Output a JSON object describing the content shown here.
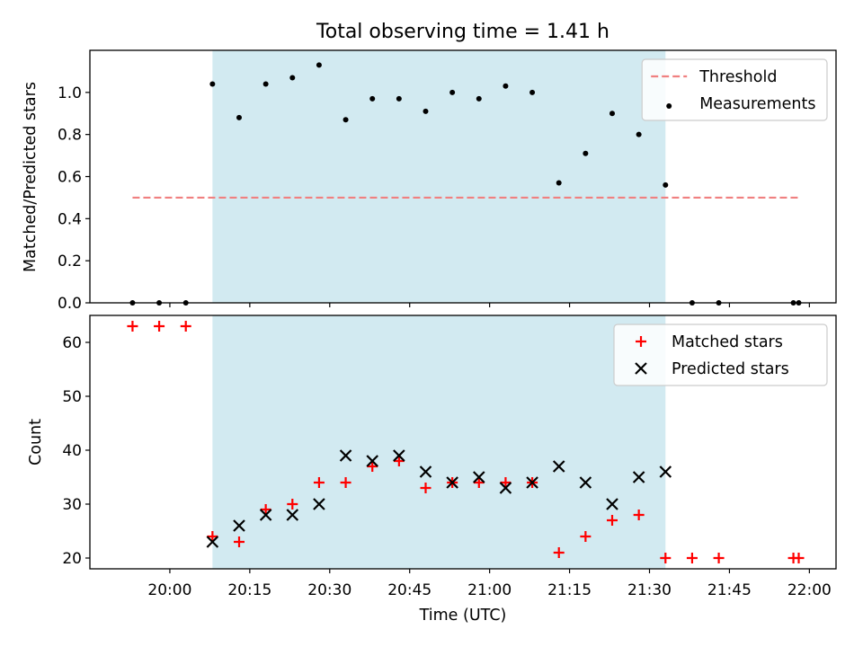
{
  "chart_data": [
    {
      "type": "scatter",
      "title": "Total observing time = 1.41 h",
      "xlabel": "",
      "ylabel": "Matched/Predicted stars",
      "ylim": [
        0,
        1.2
      ],
      "yticks": [
        0.0,
        0.2,
        0.4,
        0.6,
        0.8,
        1.0
      ],
      "ytick_labels": [
        "0.0",
        "0.2",
        "0.4",
        "0.6",
        "0.8",
        "1.0"
      ],
      "xlim_minutes": [
        1185,
        1325
      ],
      "xticks_minutes": [
        1200,
        1215,
        1230,
        1245,
        1260,
        1275,
        1290,
        1305,
        1320
      ],
      "legend_position": "upper right",
      "grid": false,
      "shaded_interval": {
        "start": "20:08",
        "end": "21:33",
        "color": "#add8e6"
      },
      "series": [
        {
          "name": "Threshold",
          "style": "dashed-line",
          "color": "#f08080",
          "x": [
            "19:53",
            "21:58"
          ],
          "values": [
            0.5,
            0.5
          ]
        },
        {
          "name": "Measurements",
          "style": "dot",
          "color": "#000000",
          "x": [
            "19:53",
            "19:58",
            "20:03",
            "20:08",
            "20:13",
            "20:18",
            "20:23",
            "20:28",
            "20:33",
            "20:38",
            "20:43",
            "20:48",
            "20:53",
            "20:58",
            "21:03",
            "21:08",
            "21:13",
            "21:18",
            "21:23",
            "21:28",
            "21:33",
            "21:38",
            "21:43",
            "21:57",
            "21:58"
          ],
          "values": [
            0.0,
            0.0,
            0.0,
            1.04,
            0.88,
            1.04,
            1.07,
            1.13,
            0.87,
            0.97,
            0.97,
            0.91,
            1.0,
            0.97,
            1.03,
            1.0,
            0.57,
            0.71,
            0.9,
            0.8,
            0.56,
            0.0,
            0.0,
            0.0,
            0.0
          ]
        }
      ]
    },
    {
      "type": "scatter",
      "title": "",
      "xlabel": "Time (UTC)",
      "ylabel": "Count",
      "ylim": [
        18,
        65
      ],
      "yticks": [
        20,
        30,
        40,
        50,
        60
      ],
      "ytick_labels": [
        "20",
        "30",
        "40",
        "50",
        "60"
      ],
      "xlim_minutes": [
        1185,
        1325
      ],
      "xticks_minutes": [
        1200,
        1215,
        1230,
        1245,
        1260,
        1275,
        1290,
        1305,
        1320
      ],
      "xtick_labels": [
        "20:00",
        "20:15",
        "20:30",
        "20:45",
        "21:00",
        "21:15",
        "21:30",
        "21:45",
        "22:00"
      ],
      "legend_position": "upper right",
      "grid": false,
      "shaded_interval": {
        "start": "20:08",
        "end": "21:33",
        "color": "#add8e6"
      },
      "series": [
        {
          "name": "Matched stars",
          "marker": "plus",
          "color": "#ff0000",
          "x": [
            "19:53",
            "19:58",
            "20:03",
            "20:08",
            "20:13",
            "20:18",
            "20:23",
            "20:28",
            "20:33",
            "20:38",
            "20:43",
            "20:48",
            "20:53",
            "20:58",
            "21:03",
            "21:08",
            "21:13",
            "21:18",
            "21:23",
            "21:28",
            "21:33",
            "21:38",
            "21:43",
            "21:57",
            "21:58"
          ],
          "values": [
            63,
            63,
            63,
            24,
            23,
            29,
            30,
            34,
            34,
            37,
            38,
            33,
            34,
            34,
            34,
            34,
            21,
            24,
            27,
            28,
            20,
            20,
            20,
            20,
            20
          ]
        },
        {
          "name": "Predicted stars",
          "marker": "x",
          "color": "#000000",
          "x": [
            "20:08",
            "20:13",
            "20:18",
            "20:23",
            "20:28",
            "20:33",
            "20:38",
            "20:43",
            "20:48",
            "20:53",
            "20:58",
            "21:03",
            "21:08",
            "21:13",
            "21:18",
            "21:23",
            "21:28",
            "21:33"
          ],
          "values": [
            23,
            26,
            28,
            28,
            30,
            39,
            38,
            39,
            36,
            34,
            35,
            33,
            34,
            37,
            34,
            30,
            35,
            36
          ]
        }
      ]
    }
  ]
}
